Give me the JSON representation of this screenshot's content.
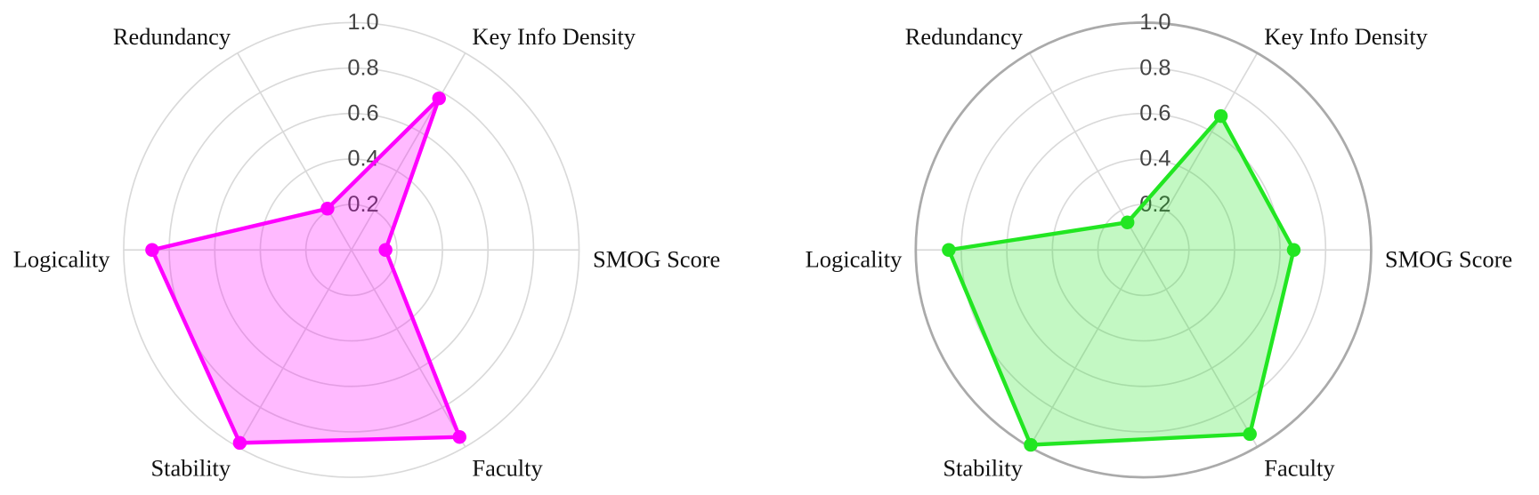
{
  "chart_data": [
    {
      "type": "radar",
      "categories": [
        "SMOG Score",
        "Key Info Density",
        "Redundancy",
        "Logicality",
        "Stability",
        "Faculty"
      ],
      "series": [
        {
          "color": "#ff00ff",
          "values": [
            0.15,
            0.77,
            0.21,
            0.875,
            0.98,
            0.95
          ]
        }
      ],
      "rlim": [
        0,
        1
      ],
      "rticks": [
        0.2,
        0.4,
        0.6,
        0.8,
        {
          "value": 1,
          "label": "1.0"
        }
      ],
      "grid": true,
      "frame": false
    },
    {
      "type": "radar",
      "categories": [
        "SMOG Score",
        "Key Info Density",
        "Redundancy",
        "Logicality",
        "Stability",
        "Faculty"
      ],
      "series": [
        {
          "color": "#22e622",
          "values": [
            0.66,
            0.68,
            0.14,
            0.855,
            0.99,
            0.935
          ]
        }
      ],
      "rlim": [
        0,
        1
      ],
      "rticks": [
        0.2,
        0.4,
        0.6,
        0.8,
        {
          "value": 1,
          "label": "1.0"
        }
      ],
      "grid": true,
      "frame": true
    }
  ]
}
